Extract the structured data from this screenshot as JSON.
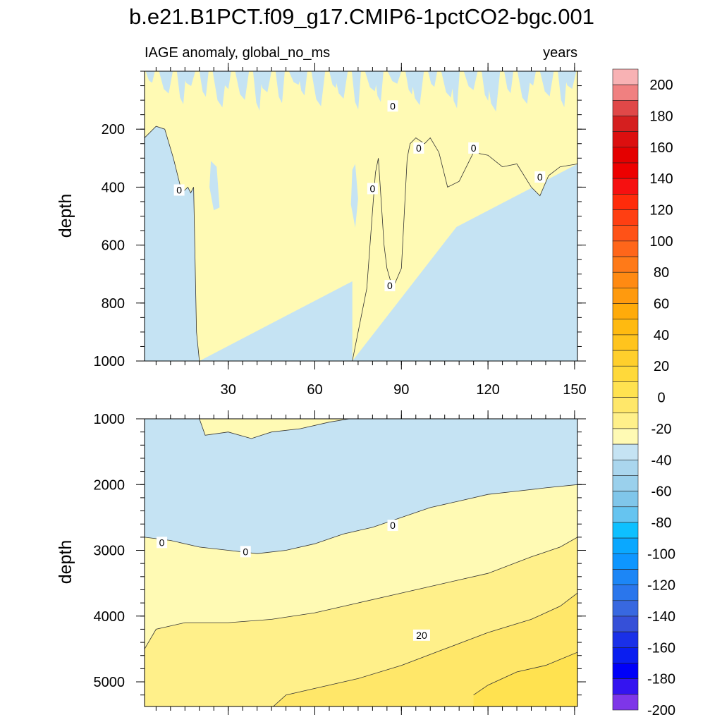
{
  "chart_data": {
    "type": "contour",
    "title": "b.e21.B1PCT.f09_g17.CMIP6-1pctCO2-bgc.001",
    "left_subtitle": "IAGE anomaly, global_no_ms",
    "right_subtitle": "years",
    "xlabel": "",
    "ylabel": "depth",
    "xlim": [
      1,
      151
    ],
    "xticks": [
      30,
      60,
      90,
      120,
      150
    ],
    "panels": [
      {
        "name": "upper",
        "ylim": [
          0,
          1000
        ],
        "yticks": [
          200,
          400,
          600,
          800,
          1000
        ],
        "xticklabels_shown": true,
        "zero_contour": [
          [
            1,
            230
          ],
          [
            5,
            190
          ],
          [
            8,
            200
          ],
          [
            11,
            300
          ],
          [
            13,
            380
          ],
          [
            14,
            420
          ],
          [
            16,
            400
          ],
          [
            17,
            420
          ],
          [
            18,
            400
          ],
          [
            19,
            900
          ],
          [
            20,
            1000
          ]
        ],
        "zero_contour_right": [
          [
            73,
            1000
          ],
          [
            78,
            750
          ],
          [
            80,
            480
          ],
          [
            81,
            350
          ],
          [
            82,
            300
          ],
          [
            83,
            450
          ],
          [
            84,
            600
          ],
          [
            85,
            680
          ],
          [
            87,
            750
          ],
          [
            90,
            680
          ],
          [
            92,
            300
          ],
          [
            93,
            250
          ],
          [
            95,
            230
          ],
          [
            98,
            250
          ],
          [
            100,
            230
          ],
          [
            103,
            280
          ],
          [
            106,
            400
          ],
          [
            110,
            380
          ],
          [
            115,
            280
          ],
          [
            120,
            290
          ],
          [
            125,
            330
          ],
          [
            130,
            320
          ],
          [
            135,
            400
          ],
          [
            138,
            430
          ],
          [
            141,
            360
          ],
          [
            145,
            330
          ],
          [
            151,
            320
          ]
        ],
        "shallow_positive_streaks_note": "alternating positive/negative filaments above ~200 m",
        "contour_labels": [
          {
            "text": "0",
            "x": 13,
            "y": 410
          },
          {
            "text": "0",
            "x": 80,
            "y": 405
          },
          {
            "text": "0",
            "x": 87,
            "y": 120
          },
          {
            "text": "0",
            "x": 96,
            "y": 265
          },
          {
            "text": "0",
            "x": 115,
            "y": 265
          },
          {
            "text": "0",
            "x": 138,
            "y": 365
          },
          {
            "text": "0",
            "x": 86,
            "y": 740
          }
        ]
      },
      {
        "name": "lower",
        "ylim": [
          1000,
          5375
        ],
        "yticks": [
          1000,
          2000,
          3000,
          4000,
          5000
        ],
        "xticklabels_shown": false,
        "zero_contour": [
          [
            1,
            2800
          ],
          [
            10,
            2850
          ],
          [
            20,
            2950
          ],
          [
            30,
            3000
          ],
          [
            40,
            3050
          ],
          [
            50,
            3000
          ],
          [
            60,
            2900
          ],
          [
            70,
            2750
          ],
          [
            80,
            2650
          ],
          [
            90,
            2500
          ],
          [
            100,
            2350
          ],
          [
            110,
            2250
          ],
          [
            120,
            2150
          ],
          [
            130,
            2100
          ],
          [
            140,
            2050
          ],
          [
            151,
            2000
          ]
        ],
        "shallow_positive_patch": [
          [
            20,
            1000
          ],
          [
            22,
            1250
          ],
          [
            30,
            1200
          ],
          [
            38,
            1300
          ],
          [
            45,
            1200
          ],
          [
            55,
            1150
          ],
          [
            65,
            1050
          ],
          [
            72,
            1000
          ]
        ],
        "c10_contour": [
          [
            1,
            4500
          ],
          [
            5,
            4200
          ],
          [
            15,
            4100
          ],
          [
            30,
            4100
          ],
          [
            45,
            4050
          ],
          [
            60,
            3950
          ],
          [
            75,
            3800
          ],
          [
            90,
            3650
          ],
          [
            105,
            3500
          ],
          [
            120,
            3350
          ],
          [
            135,
            3100
          ],
          [
            145,
            2950
          ],
          [
            151,
            2800
          ]
        ],
        "c20_contour": [
          [
            45,
            5400
          ],
          [
            50,
            5200
          ],
          [
            60,
            5100
          ],
          [
            75,
            4950
          ],
          [
            90,
            4750
          ],
          [
            105,
            4500
          ],
          [
            120,
            4250
          ],
          [
            135,
            4050
          ],
          [
            145,
            3850
          ],
          [
            151,
            3650
          ]
        ],
        "c30_contour": [
          [
            115,
            5200
          ],
          [
            120,
            5050
          ],
          [
            130,
            4850
          ],
          [
            140,
            4750
          ],
          [
            151,
            4550
          ]
        ],
        "contour_labels": [
          {
            "text": "0",
            "x": 7,
            "y": 2880
          },
          {
            "text": "0",
            "x": 36,
            "y": 3020
          },
          {
            "text": "0",
            "x": 87,
            "y": 2620
          },
          {
            "text": "20",
            "x": 97,
            "y": 4290
          }
        ]
      }
    ],
    "colorbar": {
      "levels": [
        -200,
        -190,
        -180,
        -170,
        -160,
        -150,
        -140,
        -130,
        -120,
        -110,
        -100,
        -90,
        -80,
        -70,
        -60,
        -50,
        -40,
        -30,
        -20,
        -10,
        0,
        10,
        20,
        30,
        40,
        50,
        60,
        70,
        80,
        90,
        100,
        110,
        120,
        130,
        140,
        150,
        160,
        170,
        180,
        190,
        200
      ],
      "labels": [
        200,
        180,
        160,
        140,
        120,
        100,
        80,
        60,
        40,
        20,
        0,
        -20,
        -40,
        -60,
        -80,
        -100,
        -120,
        -140,
        -160,
        -180,
        -200
      ],
      "colors_top_to_bottom": [
        "#f8b2b4",
        "#f08080",
        "#e04848",
        "#d51f1f",
        "#dc0f0f",
        "#e40000",
        "#ed0000",
        "#f61010",
        "#ff2b0a",
        "#ff3f12",
        "#ff5217",
        "#ff661a",
        "#ff7a18",
        "#ff8a12",
        "#ff9a0e",
        "#ffab0a",
        "#ffba10",
        "#ffc41d",
        "#ffcf2c",
        "#ffd93a",
        "#ffe250",
        "#ffe769",
        "#fff08a",
        "#fffab4",
        "#c5e3f3",
        "#aad6ee",
        "#9ad0ec",
        "#80c6ea",
        "#66c4f0",
        "#0ec0ff",
        "#0aa8ff",
        "#0e96ff",
        "#1c86f6",
        "#2a76ec",
        "#3868e0",
        "#3650d8",
        "#1a30e8",
        "#0a1ef0",
        "#0000f8",
        "#3414f0",
        "#7e36e8"
      ]
    },
    "region_colors": {
      "neg": "#c5e3f3",
      "pos0": "#fffab4",
      "pos10": "#fff08a",
      "pos20": "#ffe769",
      "pos30": "#ffe250"
    }
  }
}
